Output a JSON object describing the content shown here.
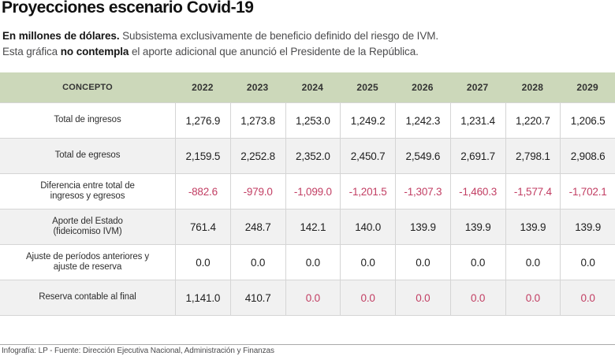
{
  "title": "Proyecciones escenario Covid-19",
  "subtitle": {
    "line1": [
      {
        "text": "En millones de dólares.",
        "bold": true
      },
      {
        "text": " Subsistema exclusivamente de beneficio definido del riesgo de IVM.",
        "bold": false
      }
    ],
    "line2": [
      {
        "text": "Esta gráfica ",
        "bold": false
      },
      {
        "text": "no contempla",
        "bold": true
      },
      {
        "text": " el aporte adicional que anunció el Presidente de la República.",
        "bold": false
      }
    ]
  },
  "table": {
    "columns": [
      "CONCEPTO",
      "2022",
      "2023",
      "2024",
      "2025",
      "2026",
      "2027",
      "2028",
      "2029"
    ],
    "rows": [
      {
        "label_lines": [
          "Total de ingresos"
        ],
        "cells": [
          {
            "text": "1,276.9",
            "negative": false
          },
          {
            "text": "1,273.8",
            "negative": false
          },
          {
            "text": "1,253.0",
            "negative": false
          },
          {
            "text": "1,249.2",
            "negative": false
          },
          {
            "text": "1,242.3",
            "negative": false
          },
          {
            "text": "1,231.4",
            "negative": false
          },
          {
            "text": "1,220.7",
            "negative": false
          },
          {
            "text": "1,206.5",
            "negative": false
          }
        ]
      },
      {
        "label_lines": [
          "Total de egresos"
        ],
        "cells": [
          {
            "text": "2,159.5",
            "negative": false
          },
          {
            "text": "2,252.8",
            "negative": false
          },
          {
            "text": "2,352.0",
            "negative": false
          },
          {
            "text": "2,450.7",
            "negative": false
          },
          {
            "text": "2,549.6",
            "negative": false
          },
          {
            "text": "2,691.7",
            "negative": false
          },
          {
            "text": "2,798.1",
            "negative": false
          },
          {
            "text": "2,908.6",
            "negative": false
          }
        ]
      },
      {
        "label_lines": [
          "Diferencia entre total de",
          "ingresos y egresos"
        ],
        "cells": [
          {
            "text": "-882.6",
            "negative": true
          },
          {
            "text": "-979.0",
            "negative": true
          },
          {
            "text": "-1,099.0",
            "negative": true
          },
          {
            "text": "-1,201.5",
            "negative": true
          },
          {
            "text": "-1,307.3",
            "negative": true
          },
          {
            "text": "-1,460.3",
            "negative": true
          },
          {
            "text": "-1,577.4",
            "negative": true
          },
          {
            "text": "-1,702.1",
            "negative": true
          }
        ]
      },
      {
        "label_lines": [
          "Aporte del Estado",
          "(fideicomiso IVM)"
        ],
        "cells": [
          {
            "text": "761.4",
            "negative": false
          },
          {
            "text": "248.7",
            "negative": false
          },
          {
            "text": "142.1",
            "negative": false
          },
          {
            "text": "140.0",
            "negative": false
          },
          {
            "text": "139.9",
            "negative": false
          },
          {
            "text": "139.9",
            "negative": false
          },
          {
            "text": "139.9",
            "negative": false
          },
          {
            "text": "139.9",
            "negative": false
          }
        ]
      },
      {
        "label_lines": [
          "Ajuste de períodos anteriores y",
          "ajuste de reserva"
        ],
        "cells": [
          {
            "text": "0.0",
            "negative": false
          },
          {
            "text": "0.0",
            "negative": false
          },
          {
            "text": "0.0",
            "negative": false
          },
          {
            "text": "0.0",
            "negative": false
          },
          {
            "text": "0.0",
            "negative": false
          },
          {
            "text": "0.0",
            "negative": false
          },
          {
            "text": "0.0",
            "negative": false
          },
          {
            "text": "0.0",
            "negative": false
          }
        ]
      },
      {
        "label_lines": [
          "Reserva contable al final"
        ],
        "cells": [
          {
            "text": "1,141.0",
            "negative": false
          },
          {
            "text": "410.7",
            "negative": false
          },
          {
            "text": "0.0",
            "negative": true
          },
          {
            "text": "0.0",
            "negative": true
          },
          {
            "text": "0.0",
            "negative": true
          },
          {
            "text": "0.0",
            "negative": true
          },
          {
            "text": "0.0",
            "negative": true
          },
          {
            "text": "0.0",
            "negative": true
          }
        ]
      }
    ]
  },
  "chart_data": {
    "type": "table",
    "title": "Proyecciones escenario Covid-19",
    "unit_note": "En millones de dólares",
    "note": "Subsistema exclusivamente de beneficio definido del riesgo de IVM. Esta gráfica no contempla el aporte adicional que anunció el Presidente de la República.",
    "x": [
      2022,
      2023,
      2024,
      2025,
      2026,
      2027,
      2028,
      2029
    ],
    "series": [
      {
        "name": "Total de ingresos",
        "values": [
          1276.9,
          1273.8,
          1253.0,
          1249.2,
          1242.3,
          1231.4,
          1220.7,
          1206.5
        ]
      },
      {
        "name": "Total de egresos",
        "values": [
          2159.5,
          2252.8,
          2352.0,
          2450.7,
          2549.6,
          2691.7,
          2798.1,
          2908.6
        ]
      },
      {
        "name": "Diferencia entre total de ingresos y egresos",
        "values": [
          -882.6,
          -979.0,
          -1099.0,
          -1201.5,
          -1307.3,
          -1460.3,
          -1577.4,
          -1702.1
        ]
      },
      {
        "name": "Aporte del Estado (fideicomiso IVM)",
        "values": [
          761.4,
          248.7,
          142.1,
          140.0,
          139.9,
          139.9,
          139.9,
          139.9
        ]
      },
      {
        "name": "Ajuste de períodos anteriores y ajuste de reserva",
        "values": [
          0.0,
          0.0,
          0.0,
          0.0,
          0.0,
          0.0,
          0.0,
          0.0
        ]
      },
      {
        "name": "Reserva contable al final",
        "values": [
          1141.0,
          410.7,
          0.0,
          0.0,
          0.0,
          0.0,
          0.0,
          0.0
        ]
      }
    ]
  },
  "colors": {
    "header_bg": "#ccd8ba",
    "alt_row_bg": "#f1f1f1",
    "negative": "#c23e63",
    "border": "#d5d5d5"
  },
  "footer": {
    "credit": "Infografía: LP - Fuente: Dirección Ejecutiva Nacional, Administración y Finanzas"
  }
}
